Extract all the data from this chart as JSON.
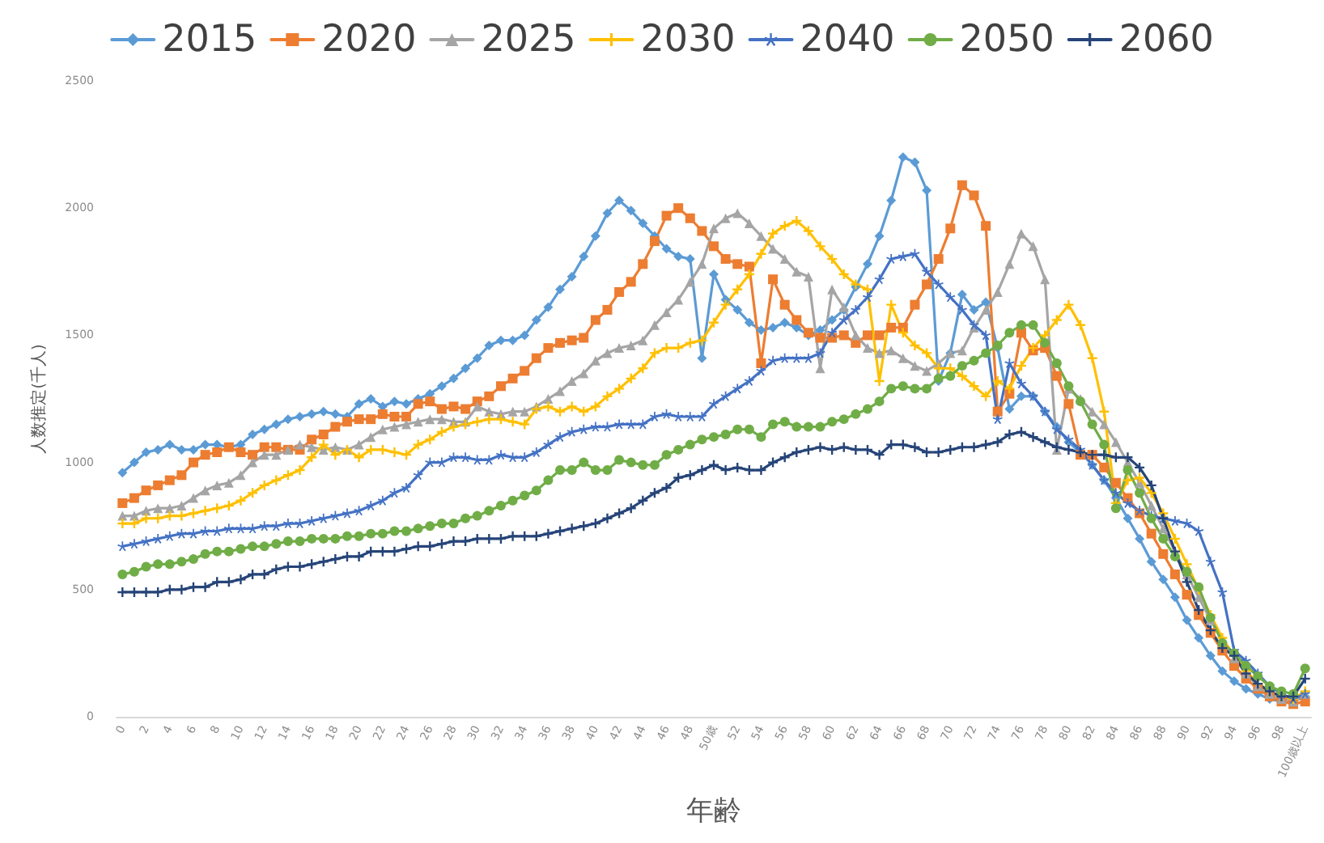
{
  "chart_data": {
    "type": "line",
    "xlabel": "年齢",
    "ylabel": "人数推定(千人)",
    "categories": [
      "0",
      null,
      "2",
      null,
      "4",
      null,
      "6",
      null,
      "8",
      null,
      "10",
      null,
      "12",
      null,
      "14",
      null,
      "16",
      null,
      "18",
      null,
      "20",
      null,
      "22",
      null,
      "24",
      null,
      "26",
      null,
      "28",
      null,
      "30",
      null,
      "32",
      null,
      "34",
      null,
      "36",
      null,
      "38",
      null,
      "40",
      null,
      "42",
      null,
      "44",
      null,
      "46",
      null,
      "48",
      null,
      "50歳",
      null,
      "52",
      null,
      "54",
      null,
      "56",
      null,
      "58",
      null,
      "60",
      null,
      "62",
      null,
      "64",
      null,
      "66",
      null,
      "68",
      null,
      "70",
      null,
      "72",
      null,
      "74",
      null,
      "76",
      null,
      "78",
      null,
      "80",
      null,
      "82",
      null,
      "84",
      null,
      "86",
      null,
      "88",
      null,
      "90",
      null,
      "92",
      null,
      "94",
      null,
      "96",
      null,
      "98",
      null,
      "100歳以上"
    ],
    "ylim": [
      0,
      2500
    ],
    "yticks": [
      0,
      500,
      1000,
      1500,
      2000,
      2500
    ],
    "legend": "top",
    "grid": false,
    "series": [
      {
        "name": "2015",
        "color": "#5b9bd5",
        "marker": "diamond",
        "values": [
          960,
          1000,
          1040,
          1050,
          1070,
          1050,
          1050,
          1070,
          1070,
          1060,
          1070,
          1110,
          1130,
          1150,
          1170,
          1180,
          1190,
          1200,
          1190,
          1180,
          1230,
          1250,
          1220,
          1240,
          1230,
          1250,
          1270,
          1300,
          1330,
          1370,
          1410,
          1460,
          1480,
          1480,
          1500,
          1560,
          1610,
          1680,
          1730,
          1810,
          1890,
          1980,
          2030,
          1990,
          1940,
          1890,
          1840,
          1810,
          1800,
          1410,
          1740,
          1640,
          1600,
          1550,
          1520,
          1530,
          1550,
          1530,
          1500,
          1520,
          1560,
          1600,
          1690,
          1780,
          1890,
          2030,
          2200,
          2180,
          2070,
          1320,
          1430,
          1660,
          1600,
          1630,
          1450,
          1210,
          1260,
          1260,
          1200,
          1140,
          1080,
          1040,
          990,
          930,
          860,
          780,
          700,
          610,
          540,
          470,
          380,
          310,
          240,
          180,
          140,
          110,
          90,
          70,
          60,
          60,
          80
        ]
      },
      {
        "name": "2020",
        "color": "#ed7d31",
        "marker": "square",
        "values": [
          840,
          860,
          890,
          910,
          930,
          950,
          1000,
          1030,
          1040,
          1060,
          1040,
          1030,
          1060,
          1060,
          1050,
          1050,
          1090,
          1110,
          1140,
          1160,
          1170,
          1170,
          1190,
          1180,
          1180,
          1230,
          1240,
          1210,
          1220,
          1210,
          1240,
          1260,
          1300,
          1330,
          1360,
          1410,
          1450,
          1470,
          1480,
          1490,
          1560,
          1600,
          1670,
          1710,
          1780,
          1870,
          1970,
          2000,
          1960,
          1910,
          1850,
          1800,
          1780,
          1770,
          1390,
          1720,
          1620,
          1560,
          1510,
          1490,
          1490,
          1500,
          1470,
          1500,
          1500,
          1530,
          1530,
          1620,
          1700,
          1800,
          1920,
          2090,
          2050,
          1930,
          1200,
          1270,
          1510,
          1440,
          1450,
          1340,
          1230,
          1030,
          1030,
          980,
          920,
          860,
          800,
          720,
          640,
          560,
          480,
          400,
          330,
          260,
          200,
          150,
          110,
          80,
          60,
          50,
          60
        ]
      },
      {
        "name": "2025",
        "color": "#a5a5a5",
        "marker": "triangle",
        "values": [
          790,
          790,
          810,
          820,
          820,
          830,
          860,
          890,
          910,
          920,
          950,
          1000,
          1030,
          1030,
          1050,
          1070,
          1060,
          1050,
          1060,
          1050,
          1070,
          1100,
          1130,
          1140,
          1150,
          1160,
          1170,
          1170,
          1160,
          1160,
          1220,
          1200,
          1190,
          1200,
          1200,
          1220,
          1250,
          1280,
          1320,
          1350,
          1400,
          1430,
          1450,
          1460,
          1480,
          1540,
          1590,
          1640,
          1710,
          1780,
          1920,
          1960,
          1980,
          1940,
          1890,
          1840,
          1800,
          1750,
          1730,
          1370,
          1680,
          1610,
          1500,
          1450,
          1430,
          1440,
          1410,
          1380,
          1360,
          1390,
          1430,
          1440,
          1530,
          1600,
          1670,
          1780,
          1900,
          1850,
          1720,
          1050,
          1290,
          1250,
          1200,
          1150,
          1080,
          1000,
          920,
          830,
          740,
          650,
          560,
          470,
          380,
          300,
          230,
          170,
          120,
          90,
          70,
          60,
          90
        ]
      },
      {
        "name": "2030",
        "color": "#ffc000",
        "marker": "cross",
        "values": [
          760,
          760,
          780,
          780,
          790,
          790,
          800,
          810,
          820,
          830,
          850,
          880,
          910,
          930,
          950,
          970,
          1020,
          1070,
          1030,
          1050,
          1020,
          1050,
          1050,
          1040,
          1030,
          1070,
          1090,
          1120,
          1140,
          1150,
          1160,
          1170,
          1170,
          1160,
          1150,
          1210,
          1220,
          1200,
          1220,
          1200,
          1220,
          1260,
          1290,
          1330,
          1370,
          1430,
          1450,
          1450,
          1470,
          1480,
          1550,
          1620,
          1680,
          1740,
          1820,
          1900,
          1930,
          1950,
          1910,
          1850,
          1800,
          1740,
          1700,
          1680,
          1320,
          1620,
          1510,
          1460,
          1430,
          1370,
          1370,
          1340,
          1300,
          1260,
          1320,
          1290,
          1380,
          1450,
          1500,
          1560,
          1620,
          1540,
          1410,
          1200,
          840,
          930,
          940,
          880,
          800,
          700,
          600,
          500,
          400,
          310,
          240,
          180,
          130,
          100,
          80,
          70,
          100
        ]
      },
      {
        "name": "2040",
        "color": "#4472c4",
        "marker": "star",
        "values": [
          670,
          680,
          690,
          700,
          710,
          720,
          720,
          730,
          730,
          740,
          740,
          740,
          750,
          750,
          760,
          760,
          770,
          780,
          790,
          800,
          810,
          830,
          850,
          880,
          900,
          950,
          1000,
          1000,
          1020,
          1020,
          1010,
          1010,
          1030,
          1020,
          1020,
          1040,
          1070,
          1100,
          1120,
          1130,
          1140,
          1140,
          1150,
          1150,
          1150,
          1180,
          1190,
          1180,
          1180,
          1180,
          1230,
          1260,
          1290,
          1320,
          1360,
          1400,
          1410,
          1410,
          1410,
          1430,
          1510,
          1560,
          1600,
          1650,
          1720,
          1800,
          1810,
          1820,
          1750,
          1700,
          1650,
          1600,
          1540,
          1500,
          1170,
          1390,
          1310,
          1260,
          1200,
          1130,
          1090,
          1050,
          990,
          930,
          880,
          840,
          810,
          790,
          780,
          770,
          760,
          730,
          610,
          490,
          260,
          220,
          170,
          120,
          90,
          70,
          90
        ]
      },
      {
        "name": "2050",
        "color": "#70ad47",
        "marker": "circle",
        "values": [
          560,
          570,
          590,
          600,
          600,
          610,
          620,
          640,
          650,
          650,
          660,
          670,
          670,
          680,
          690,
          690,
          700,
          700,
          700,
          710,
          710,
          720,
          720,
          730,
          730,
          740,
          750,
          760,
          760,
          780,
          790,
          810,
          830,
          850,
          870,
          890,
          930,
          970,
          970,
          1000,
          970,
          970,
          1010,
          1000,
          990,
          990,
          1030,
          1050,
          1070,
          1090,
          1100,
          1110,
          1130,
          1130,
          1100,
          1150,
          1160,
          1140,
          1140,
          1140,
          1160,
          1170,
          1190,
          1210,
          1240,
          1290,
          1300,
          1290,
          1290,
          1330,
          1340,
          1380,
          1400,
          1430,
          1460,
          1510,
          1540,
          1540,
          1470,
          1390,
          1300,
          1240,
          1150,
          1070,
          820,
          970,
          880,
          780,
          700,
          630,
          570,
          510,
          390,
          290,
          250,
          200,
          160,
          120,
          100,
          90,
          190
        ]
      },
      {
        "name": "2060",
        "color": "#264478",
        "marker": "cross",
        "values": [
          490,
          490,
          490,
          490,
          500,
          500,
          510,
          510,
          530,
          530,
          540,
          560,
          560,
          580,
          590,
          590,
          600,
          610,
          620,
          630,
          630,
          650,
          650,
          650,
          660,
          670,
          670,
          680,
          690,
          690,
          700,
          700,
          700,
          710,
          710,
          710,
          720,
          730,
          740,
          750,
          760,
          780,
          800,
          820,
          850,
          880,
          900,
          940,
          950,
          970,
          990,
          970,
          980,
          970,
          970,
          1000,
          1020,
          1040,
          1050,
          1060,
          1050,
          1060,
          1050,
          1050,
          1030,
          1070,
          1070,
          1060,
          1040,
          1040,
          1050,
          1060,
          1060,
          1070,
          1080,
          1110,
          1120,
          1100,
          1080,
          1060,
          1050,
          1040,
          1030,
          1030,
          1020,
          1020,
          980,
          910,
          780,
          650,
          530,
          420,
          340,
          270,
          240,
          170,
          130,
          100,
          80,
          80,
          150
        ]
      }
    ]
  }
}
